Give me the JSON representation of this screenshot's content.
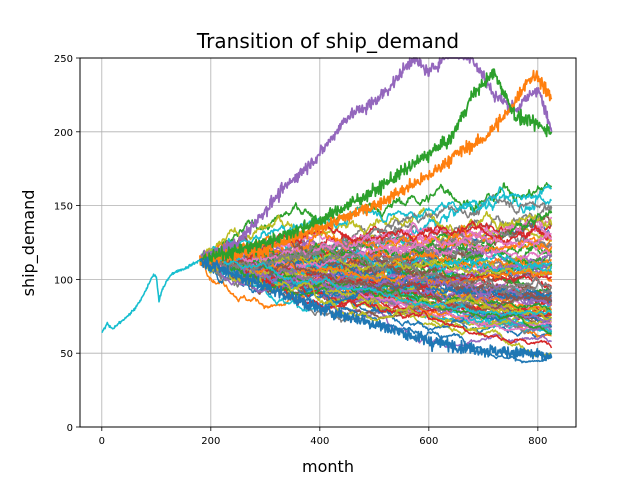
{
  "chart_data": {
    "type": "line",
    "title": "Transition of ship_demand",
    "xlabel": "month",
    "ylabel": "ship_demand",
    "xlim": [
      -40,
      870
    ],
    "ylim": [
      0,
      250
    ],
    "xticks": [
      0,
      200,
      400,
      600,
      800
    ],
    "yticks": [
      0,
      50,
      100,
      150,
      200,
      250
    ],
    "grid": true,
    "history": {
      "x": [
        0,
        10,
        20,
        30,
        40,
        50,
        60,
        70,
        80,
        90,
        95,
        100,
        105,
        110,
        120,
        130,
        140,
        150,
        160,
        170,
        180
      ],
      "y": [
        64,
        70,
        66,
        70,
        73,
        76,
        80,
        85,
        92,
        100,
        103,
        102,
        85,
        92,
        100,
        104,
        106,
        107,
        109,
        111,
        113
      ],
      "color": "#17becf"
    },
    "forecast": {
      "start_month": 180,
      "end_month": 825,
      "start_value": 113,
      "path_count": 100,
      "colors": [
        "#1f77b4",
        "#ff7f0e",
        "#2ca02c",
        "#d62728",
        "#9467bd",
        "#8c564b",
        "#e377c2",
        "#7f7f7f",
        "#bcbd22",
        "#17becf"
      ],
      "highlight_paths": [
        {
          "color": "#9467bd",
          "x": [
            180,
            250,
            330,
            400,
            450,
            500,
            540,
            570,
            600,
            640,
            680,
            720,
            760,
            800,
            825
          ],
          "y": [
            113,
            125,
            160,
            185,
            210,
            220,
            235,
            250,
            240,
            255,
            250,
            225,
            215,
            230,
            200
          ]
        },
        {
          "color": "#ff7f0e",
          "x": [
            180,
            300,
            400,
            500,
            600,
            650,
            700,
            750,
            780,
            800,
            825
          ],
          "y": [
            113,
            120,
            135,
            150,
            170,
            185,
            195,
            215,
            235,
            238,
            222
          ]
        },
        {
          "color": "#2ca02c",
          "x": [
            180,
            300,
            400,
            500,
            580,
            640,
            680,
            720,
            760,
            800,
            825
          ],
          "y": [
            113,
            125,
            140,
            160,
            180,
            195,
            225,
            240,
            210,
            205,
            200
          ]
        },
        {
          "color": "#1f77b4",
          "x": [
            180,
            300,
            400,
            500,
            600,
            700,
            780,
            825
          ],
          "y": [
            113,
            95,
            80,
            70,
            58,
            52,
            50,
            47
          ]
        }
      ]
    }
  }
}
